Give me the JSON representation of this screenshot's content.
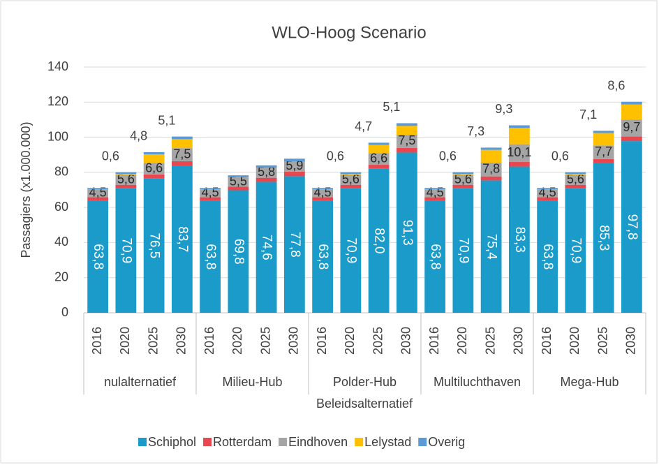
{
  "chart_data": {
    "type": "stacked-bar",
    "title": "WLO-Hoog Scenario",
    "y_label": "Passagiers (x1.000.000)",
    "x_label": "Beleidsalternatief",
    "groups": [
      "nulalternatief",
      "Milieu-Hub",
      "Polder-Hub",
      "Multiluchthaven",
      "Mega-Hub"
    ],
    "categories": [
      "2016",
      "2020",
      "2025",
      "2030",
      "2016",
      "2020",
      "2025",
      "2030",
      "2016",
      "2020",
      "2025",
      "2030",
      "2016",
      "2020",
      "2025",
      "2030",
      "2016",
      "2020",
      "2025",
      "2030"
    ],
    "ylim": [
      0,
      140
    ],
    "yticks": [
      0,
      20,
      40,
      60,
      80,
      100,
      120,
      140
    ],
    "grid": true,
    "legend": "bottom",
    "series": [
      {
        "name": "Schiphol",
        "color": "#1a9bc9",
        "values": [
          63.8,
          70.9,
          76.5,
          83.7,
          63.8,
          69.8,
          74.6,
          77.8,
          63.8,
          70.9,
          82.0,
          91.3,
          63.8,
          70.9,
          75.4,
          83.3,
          63.8,
          70.9,
          85.3,
          97.8
        ],
        "value_labels": [
          "63,8",
          "70,9",
          "76,5",
          "83,7",
          "63,8",
          "69,8",
          "74,6",
          "77,8",
          "63,8",
          "70,9",
          "82,0",
          "91,3",
          "63,8",
          "70,9",
          "75,4",
          "83,3",
          "63,8",
          "70,9",
          "85,3",
          "97,8"
        ]
      },
      {
        "name": "Rotterdam",
        "color": "#e8474f",
        "values": [
          2.0,
          2.0,
          2.3,
          2.6,
          2.0,
          2.0,
          2.3,
          2.6,
          2.0,
          2.0,
          2.3,
          2.6,
          2.0,
          2.0,
          2.3,
          2.6,
          2.0,
          2.0,
          2.3,
          2.6
        ]
      },
      {
        "name": "Eindhoven",
        "color": "#a5a5a5",
        "values": [
          4.5,
          5.6,
          6.6,
          7.5,
          4.5,
          5.5,
          5.8,
          5.9,
          4.5,
          5.6,
          6.6,
          7.5,
          4.5,
          5.6,
          7.8,
          10.1,
          4.5,
          5.6,
          7.7,
          9.7
        ],
        "value_labels": [
          "4,5",
          "5,6",
          "6,6",
          "7,5",
          "4,5",
          "5,5",
          "5,8",
          "5,9",
          "4,5",
          "5,6",
          "6,6",
          "7,5",
          "4,5",
          "5,6",
          "7,8",
          "10,1",
          "4,5",
          "5,6",
          "7,7",
          "9,7"
        ]
      },
      {
        "name": "Lelystad",
        "color": "#ffc000",
        "values": [
          0,
          0.6,
          4.8,
          5.1,
          0,
          0,
          0,
          0,
          0,
          0.6,
          4.7,
          5.1,
          0,
          0.6,
          7.3,
          9.3,
          0,
          0.6,
          7.1,
          8.6
        ],
        "value_labels": [
          null,
          "0,6",
          "4,8",
          "5,1",
          null,
          null,
          null,
          null,
          null,
          "0,6",
          "4,7",
          "5,1",
          null,
          "0,6",
          "7,3",
          "9,3",
          null,
          "0,6",
          "7,1",
          "8,6"
        ]
      },
      {
        "name": "Overig",
        "color": "#5b9bd5",
        "values": [
          0.8,
          1.0,
          1.3,
          1.5,
          0.8,
          1.0,
          1.3,
          1.5,
          0.8,
          1.0,
          1.3,
          1.5,
          0.8,
          1.0,
          1.3,
          1.5,
          0.8,
          1.0,
          1.3,
          1.5
        ]
      }
    ]
  }
}
